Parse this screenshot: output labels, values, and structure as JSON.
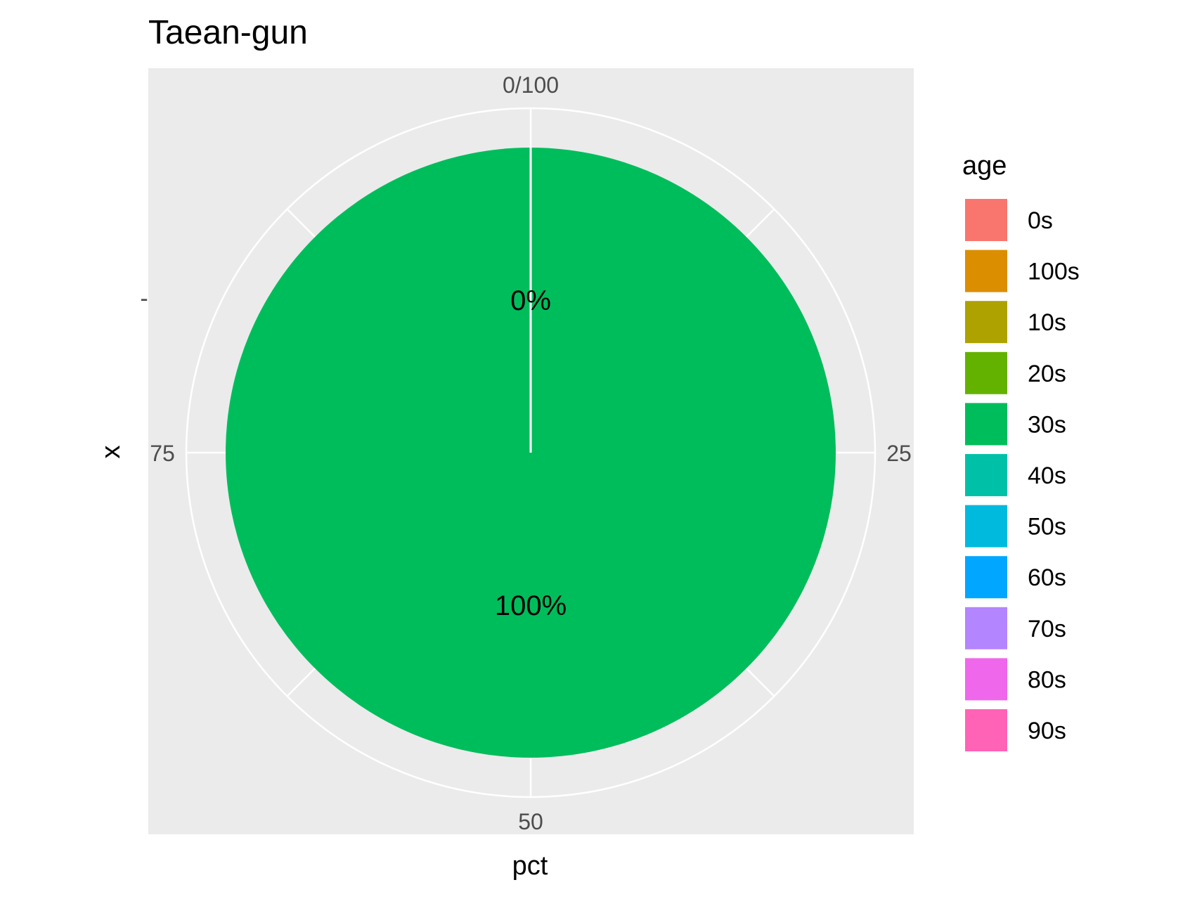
{
  "chart_data": {
    "type": "pie",
    "title": "Taean-gun",
    "xlabel": "pct",
    "ylabel": "x",
    "y_tick_label": "-",
    "theta_ticks": [
      "0/100",
      "25",
      "50",
      "75"
    ],
    "theta_range": [
      0,
      100
    ],
    "slices": [
      {
        "category": "30s",
        "value": 100,
        "label": "100%"
      },
      {
        "category": "",
        "value": 0,
        "label": "0%"
      }
    ],
    "legend": {
      "title": "age",
      "position": "right",
      "items": [
        {
          "label": "0s",
          "color": "#F8766D"
        },
        {
          "label": "100s",
          "color": "#DB8E00"
        },
        {
          "label": "10s",
          "color": "#AEA200"
        },
        {
          "label": "20s",
          "color": "#64B200"
        },
        {
          "label": "30s",
          "color": "#00BD5C"
        },
        {
          "label": "40s",
          "color": "#00C1A7"
        },
        {
          "label": "50s",
          "color": "#00BADE"
        },
        {
          "label": "60s",
          "color": "#00A6FF"
        },
        {
          "label": "70s",
          "color": "#B385FF"
        },
        {
          "label": "80s",
          "color": "#EF67EB"
        },
        {
          "label": "90s",
          "color": "#FF63B6"
        }
      ]
    },
    "panel_color": "#EBEBEB",
    "grid_color": "#FFFFFF",
    "grid": true
  }
}
